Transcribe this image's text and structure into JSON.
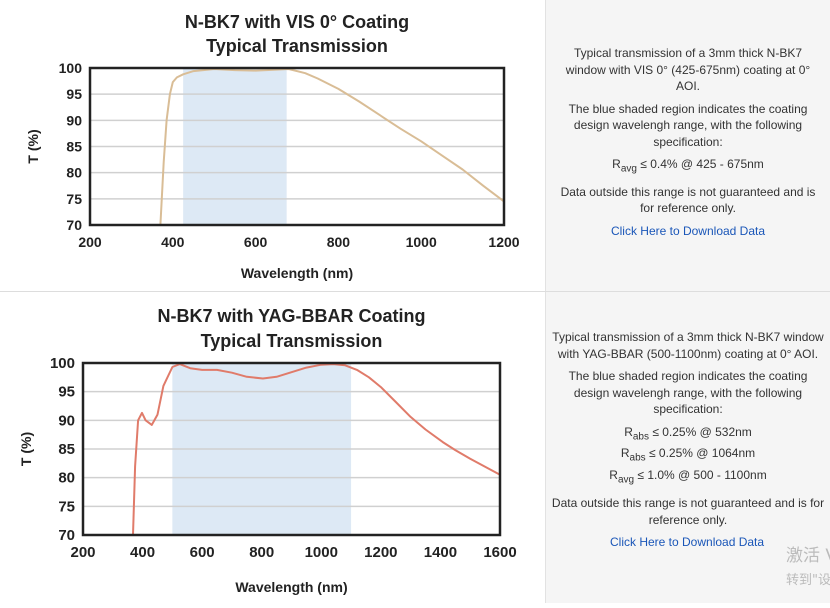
{
  "chart_data": [
    {
      "type": "line",
      "title": [
        "N-BK7 with VIS 0° Coating",
        "Typical Transmission"
      ],
      "xlabel": "Wavelength (nm)",
      "ylabel": "T (%)",
      "xlim": [
        200,
        1200
      ],
      "ylim": [
        70,
        100
      ],
      "xticks": [
        200,
        400,
        600,
        800,
        1000,
        1200
      ],
      "yticks": [
        70,
        75,
        80,
        85,
        90,
        95,
        100
      ],
      "shaded_range": [
        425,
        675
      ],
      "line_color": "#d9bd96",
      "shade_color": "#dde9f5",
      "series": [
        {
          "name": "Transmission",
          "x": [
            370,
            378,
            385,
            393,
            400,
            410,
            425,
            450,
            500,
            550,
            600,
            650,
            680,
            720,
            750,
            800,
            850,
            900,
            950,
            1000,
            1050,
            1100,
            1150,
            1200
          ],
          "y": [
            70,
            82,
            90,
            95,
            97.3,
            98.2,
            98.8,
            99.4,
            99.8,
            99.6,
            99.5,
            99.7,
            99.8,
            99.0,
            98.0,
            96.0,
            93.6,
            91.0,
            88.4,
            86.0,
            83.3,
            80.6,
            77.5,
            74.5
          ]
        }
      ]
    },
    {
      "type": "line",
      "title": [
        "N-BK7 with YAG-BBAR Coating",
        "Typical Transmission"
      ],
      "xlabel": "Wavelength (nm)",
      "ylabel": "T (%)",
      "xlim": [
        200,
        1600
      ],
      "ylim": [
        70,
        100
      ],
      "xticks": [
        200,
        400,
        600,
        800,
        1000,
        1200,
        1400,
        1600
      ],
      "yticks": [
        70,
        75,
        80,
        85,
        90,
        95,
        100
      ],
      "shaded_range": [
        500,
        1100
      ],
      "line_color": "#e07b6a",
      "shade_color": "#dde9f5",
      "series": [
        {
          "name": "Transmission",
          "x": [
            368,
            375,
            385,
            398,
            410,
            431,
            450,
            470,
            500,
            525,
            560,
            600,
            650,
            700,
            750,
            804,
            850,
            900,
            950,
            1000,
            1040,
            1080,
            1120,
            1160,
            1200,
            1250,
            1300,
            1350,
            1408,
            1450,
            1500,
            1550,
            1600
          ],
          "y": [
            70,
            82,
            90,
            91.3,
            90,
            89.2,
            91,
            96,
            99.3,
            99.8,
            99.1,
            98.8,
            98.8,
            98.3,
            97.6,
            97.3,
            97.6,
            98.4,
            99.2,
            99.7,
            99.8,
            99.6,
            98.8,
            97.5,
            95.8,
            93.2,
            90.6,
            88.4,
            86.2,
            84.8,
            83.3,
            81.9,
            80.5
          ]
        }
      ]
    }
  ],
  "descriptions": [
    {
      "intro": "Typical transmission of a 3mm thick N-BK7 window with VIS 0° (425-675nm) coating at 0° AOI.",
      "shade_note": "The blue shaded region indicates the coating design wavelengh range, with the following specification:",
      "specs": [
        {
          "symbol": "R",
          "sub": "avg",
          "text": " ≤ 0.4% @ 425 - 675nm"
        }
      ],
      "disclaimer": "Data outside this range is not guaranteed and is for reference only.",
      "download": "Click Here to Download Data"
    },
    {
      "intro": "Typical transmission of a 3mm thick N-BK7 window with YAG-BBAR (500-1100nm) coating at 0° AOI.",
      "shade_note": "The blue shaded region indicates the coating design wavelengh range, with the following specification:",
      "specs": [
        {
          "symbol": "R",
          "sub": "abs",
          "text": " ≤ 0.25% @ 532nm"
        },
        {
          "symbol": "R",
          "sub": "abs",
          "text": " ≤ 0.25% @ 1064nm"
        },
        {
          "symbol": "R",
          "sub": "avg",
          "text": " ≤ 1.0% @ 500 - 1100nm"
        }
      ],
      "disclaimer": "Data outside this range is not guaranteed and is for reference only.",
      "download": "Click Here to Download Data"
    }
  ],
  "watermark": {
    "line1": "激活 V",
    "line2": "转到\"设"
  }
}
